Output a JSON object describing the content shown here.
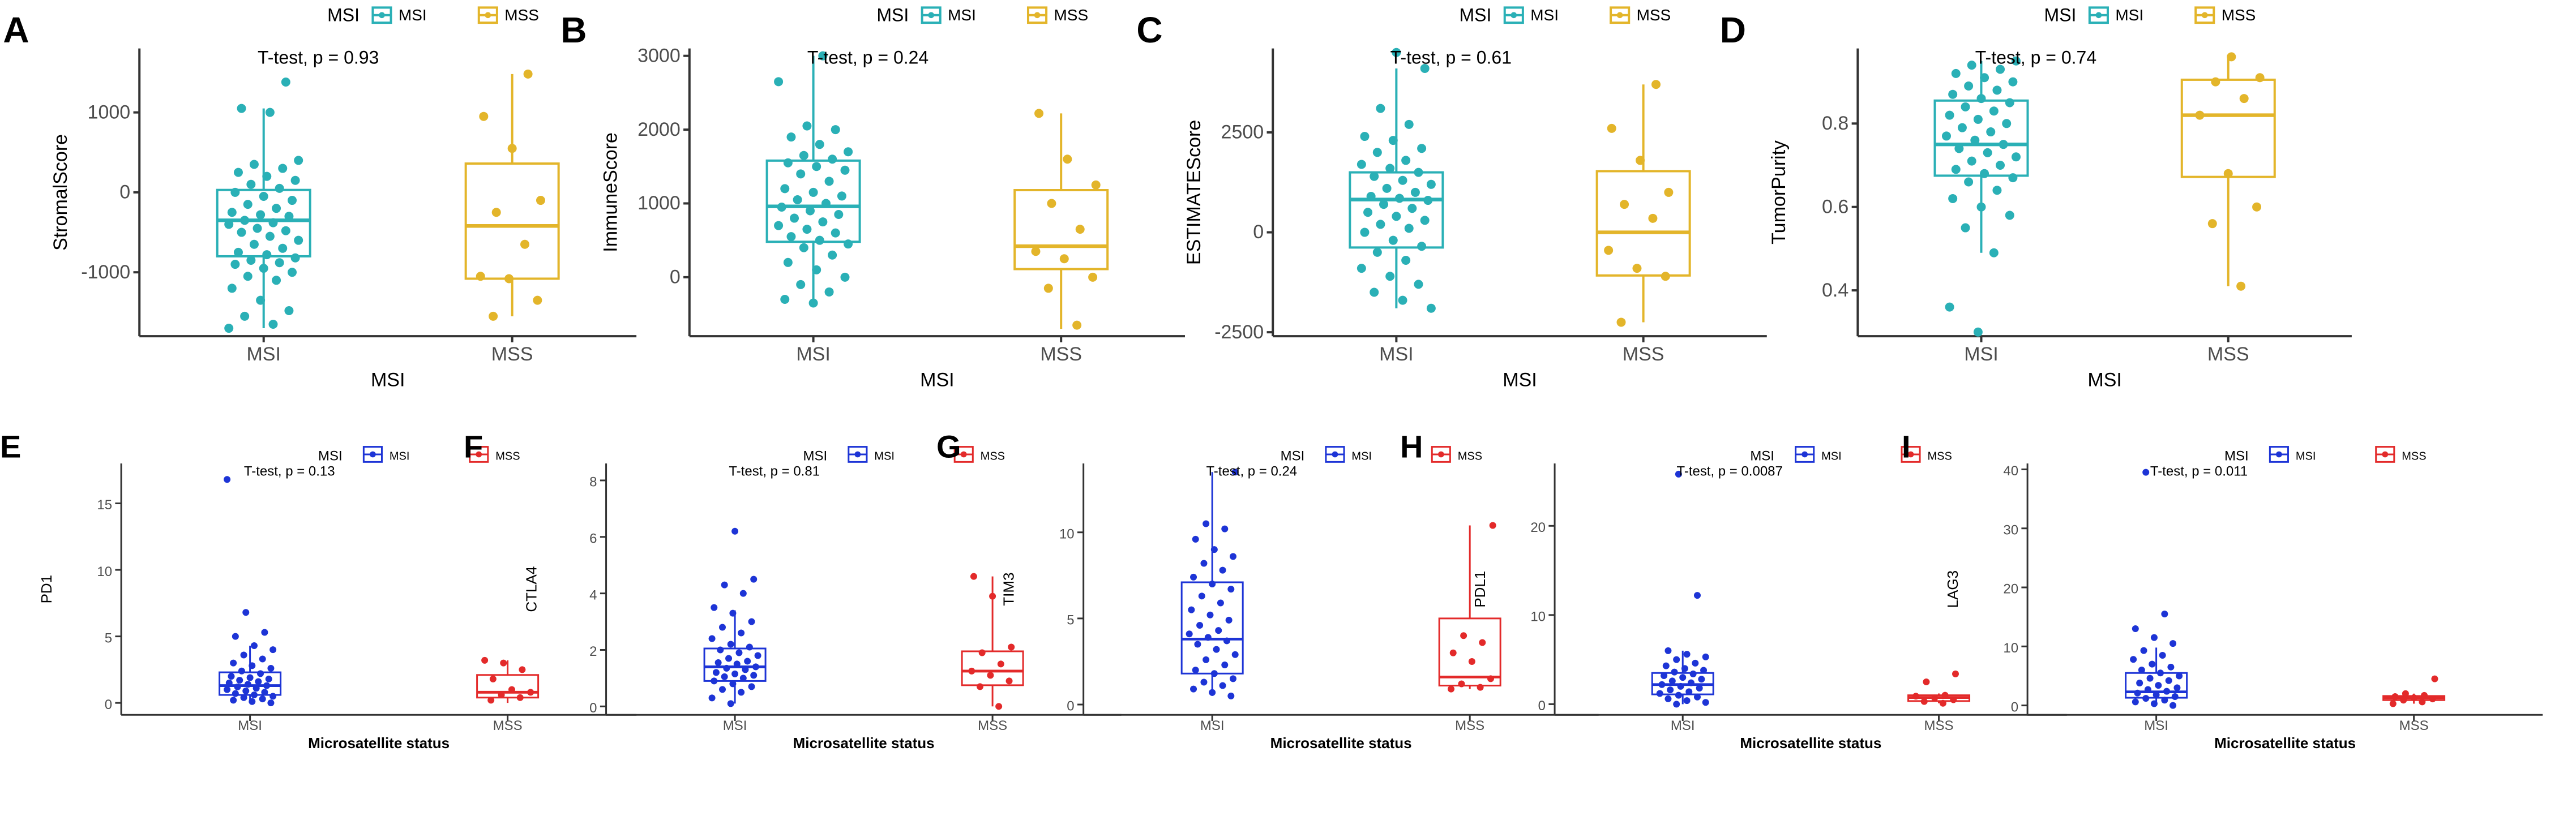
{
  "figure": {
    "panel_letters": [
      "A",
      "B",
      "C",
      "D",
      "E",
      "F",
      "G",
      "H",
      "I"
    ]
  },
  "colors": {
    "msi_top": "#2ab0b6",
    "mss_top": "#e3b52a",
    "msi_bottom": "#1d34d6",
    "mss_bottom": "#e32a2a",
    "axis": "#333333",
    "text": "#000000"
  },
  "chart_data": [
    {
      "panel": "A",
      "type": "boxplot",
      "ylabel": "StromalScore",
      "xlabel": "MSI",
      "categories": [
        "MSI",
        "MSS"
      ],
      "legend": {
        "title": "MSI",
        "entries": [
          "MSI",
          "MSS"
        ]
      },
      "annotation": "T-test, p = 0.93",
      "ylim": [
        -1800,
        1800
      ],
      "yticks": [
        -1000,
        0,
        1000
      ],
      "ytick_labels": [
        "-1000",
        "0",
        "1000"
      ],
      "boxes": [
        {
          "category": "MSI",
          "q1": -800,
          "median": -350,
          "q3": 30,
          "whisker_low": -1700,
          "whisker_high": 1050
        },
        {
          "category": "MSS",
          "q1": -1080,
          "median": -420,
          "q3": 360,
          "whisker_low": -1550,
          "whisker_high": 1480
        }
      ],
      "points": [
        [
          -1700,
          -1650,
          -1550,
          -1480,
          -1350,
          -1200,
          -1100,
          -1050,
          -1000,
          -950,
          -900,
          -880,
          -850,
          -820,
          -780,
          -750,
          -700,
          -650,
          -600,
          -550,
          -500,
          -480,
          -450,
          -400,
          -380,
          -350,
          -300,
          -280,
          -250,
          -200,
          -150,
          -100,
          -50,
          0,
          50,
          100,
          150,
          200,
          250,
          300,
          350,
          400,
          1000,
          1050,
          1380
        ],
        [
          -1550,
          -1350,
          -1080,
          -1050,
          -650,
          -250,
          -100,
          550,
          950,
          1480
        ]
      ]
    },
    {
      "panel": "B",
      "type": "boxplot",
      "ylabel": "ImmuneScore",
      "xlabel": "MSI",
      "categories": [
        "MSI",
        "MSS"
      ],
      "legend": {
        "title": "MSI",
        "entries": [
          "MSI",
          "MSS"
        ]
      },
      "annotation": "T-test, p = 0.24",
      "ylim": [
        -800,
        3100
      ],
      "yticks": [
        0,
        1000,
        2000,
        3000
      ],
      "ytick_labels": [
        "0",
        "1000",
        "2000",
        "3000"
      ],
      "boxes": [
        {
          "category": "MSI",
          "q1": 480,
          "median": 960,
          "q3": 1580,
          "whisker_low": -300,
          "whisker_high": 3000
        },
        {
          "category": "MSS",
          "q1": 110,
          "median": 420,
          "q3": 1180,
          "whisker_low": -700,
          "whisker_high": 2220
        }
      ],
      "points": [
        [
          -350,
          -300,
          -200,
          -100,
          0,
          100,
          200,
          300,
          400,
          450,
          500,
          550,
          600,
          650,
          700,
          750,
          800,
          850,
          900,
          950,
          1000,
          1050,
          1100,
          1150,
          1200,
          1300,
          1400,
          1450,
          1500,
          1550,
          1600,
          1650,
          1700,
          1800,
          1900,
          2000,
          2050,
          2650,
          3000
        ],
        [
          -650,
          -150,
          0,
          250,
          350,
          650,
          1000,
          1250,
          1600,
          2220
        ]
      ]
    },
    {
      "panel": "C",
      "type": "boxplot",
      "ylabel": "ESTIMATEScore",
      "xlabel": "MSI",
      "categories": [
        "MSI",
        "MSS"
      ],
      "legend": {
        "title": "MSI",
        "entries": [
          "MSI",
          "MSS"
        ]
      },
      "annotation": "T-test, p = 0.61",
      "ylim": [
        -2600,
        4600
      ],
      "yticks": [
        -2500,
        0,
        2500
      ],
      "ytick_labels": [
        "-2500",
        "0",
        "2500"
      ],
      "boxes": [
        {
          "category": "MSI",
          "q1": -380,
          "median": 820,
          "q3": 1500,
          "whisker_low": -1900,
          "whisker_high": 4100
        },
        {
          "category": "MSS",
          "q1": -1080,
          "median": 0,
          "q3": 1530,
          "whisker_low": -2250,
          "whisker_high": 3700
        }
      ],
      "points": [
        [
          -1900,
          -1700,
          -1500,
          -1300,
          -1100,
          -900,
          -700,
          -500,
          -350,
          -200,
          0,
          100,
          200,
          300,
          400,
          500,
          600,
          700,
          800,
          850,
          900,
          1000,
          1100,
          1200,
          1300,
          1400,
          1500,
          1600,
          1700,
          1800,
          2000,
          2100,
          2300,
          2400,
          2700,
          3100,
          4100,
          4500
        ],
        [
          -2250,
          -1100,
          -900,
          -450,
          350,
          700,
          1000,
          1800,
          2600,
          3700
        ]
      ]
    },
    {
      "panel": "D",
      "type": "boxplot",
      "ylabel": "TumorPurity",
      "xlabel": "MSI",
      "categories": [
        "MSI",
        "MSS"
      ],
      "legend": {
        "title": "MSI",
        "entries": [
          "MSI",
          "MSS"
        ]
      },
      "annotation": "T-test, p = 0.74",
      "ylim": [
        0.29,
        0.98
      ],
      "yticks": [
        0.4,
        0.6,
        0.8
      ],
      "ytick_labels": [
        "0.4",
        "0.6",
        "0.8"
      ],
      "boxes": [
        {
          "category": "MSI",
          "q1": 0.675,
          "median": 0.75,
          "q3": 0.855,
          "whisker_low": 0.49,
          "whisker_high": 0.95
        },
        {
          "category": "MSS",
          "q1": 0.672,
          "median": 0.82,
          "q3": 0.905,
          "whisker_low": 0.41,
          "whisker_high": 0.965
        }
      ],
      "points": [
        [
          0.3,
          0.36,
          0.49,
          0.55,
          0.58,
          0.6,
          0.62,
          0.64,
          0.66,
          0.67,
          0.68,
          0.69,
          0.7,
          0.71,
          0.72,
          0.73,
          0.74,
          0.75,
          0.76,
          0.77,
          0.78,
          0.79,
          0.8,
          0.81,
          0.82,
          0.83,
          0.84,
          0.85,
          0.86,
          0.87,
          0.88,
          0.89,
          0.9,
          0.91,
          0.92,
          0.93,
          0.94,
          0.95
        ],
        [
          0.41,
          0.56,
          0.6,
          0.68,
          0.82,
          0.86,
          0.9,
          0.91,
          0.96
        ]
      ]
    },
    {
      "panel": "E",
      "type": "boxplot",
      "ylabel": "PD1",
      "xlabel": "Microsatellite status",
      "categories": [
        "MSI",
        "MSS"
      ],
      "legend": {
        "title": "MSI",
        "entries": [
          "MSI",
          "MSS"
        ]
      },
      "annotation": "T-test, p = 0.13",
      "ylim": [
        -0.9,
        18
      ],
      "yticks": [
        0,
        5,
        10,
        15
      ],
      "ytick_labels": [
        "0",
        "5",
        "10",
        "15"
      ],
      "boxes": [
        {
          "category": "MSI",
          "q1": 0.6,
          "median": 1.3,
          "q3": 2.3,
          "whisker_low": 0,
          "whisker_high": 4.3
        },
        {
          "category": "MSS",
          "q1": 0.4,
          "median": 0.8,
          "q3": 2.1,
          "whisker_low": 0,
          "whisker_high": 3.2
        }
      ],
      "points": [
        [
          0,
          0.1,
          0.2,
          0.3,
          0.4,
          0.5,
          0.6,
          0.7,
          0.8,
          0.9,
          1.0,
          1.1,
          1.2,
          1.3,
          1.4,
          1.5,
          1.6,
          1.7,
          1.8,
          1.9,
          2.0,
          2.2,
          2.4,
          2.6,
          2.8,
          3.0,
          3.3,
          3.6,
          4.0,
          4.3,
          5.0,
          5.3,
          6.8,
          16.8
        ],
        [
          0.2,
          0.4,
          0.6,
          0.8,
          1.0,
          1.8,
          2.5,
          3.0,
          3.2
        ]
      ]
    },
    {
      "panel": "F",
      "type": "boxplot",
      "ylabel": "CTLA4",
      "xlabel": "Microsatellite status",
      "categories": [
        "MSI",
        "MSS"
      ],
      "legend": {
        "title": "MSI",
        "entries": [
          "MSI",
          "MSS"
        ]
      },
      "annotation": "T-test, p = 0.81",
      "ylim": [
        -0.3,
        8.6
      ],
      "yticks": [
        0,
        2,
        4,
        6,
        8
      ],
      "ytick_labels": [
        "0",
        "2",
        "4",
        "6",
        "8"
      ],
      "boxes": [
        {
          "category": "MSI",
          "q1": 0.9,
          "median": 1.4,
          "q3": 2.05,
          "whisker_low": 0.1,
          "whisker_high": 3.4
        },
        {
          "category": "MSS",
          "q1": 0.75,
          "median": 1.25,
          "q3": 1.95,
          "whisker_low": 0,
          "whisker_high": 4.6
        }
      ],
      "points": [
        [
          0.1,
          0.3,
          0.5,
          0.6,
          0.7,
          0.8,
          0.9,
          1.0,
          1.05,
          1.1,
          1.15,
          1.2,
          1.3,
          1.35,
          1.4,
          1.5,
          1.55,
          1.6,
          1.7,
          1.8,
          1.9,
          2.0,
          2.1,
          2.2,
          2.4,
          2.6,
          2.8,
          3.0,
          3.3,
          3.5,
          4.0,
          4.3,
          4.5,
          6.2
        ],
        [
          0,
          0.7,
          0.9,
          1.1,
          1.25,
          1.5,
          1.9,
          2.1,
          3.9,
          4.6
        ]
      ]
    },
    {
      "panel": "G",
      "type": "boxplot",
      "ylabel": "TIM3",
      "xlabel": "Microsatellite status",
      "categories": [
        "MSI",
        "MSS"
      ],
      "legend": {
        "title": "MSI",
        "entries": [
          "MSI",
          "MSS"
        ]
      },
      "annotation": "T-test, p = 0.24",
      "ylim": [
        -0.6,
        14
      ],
      "yticks": [
        0,
        5,
        10
      ],
      "ytick_labels": [
        "0",
        "5",
        "10"
      ],
      "boxes": [
        {
          "category": "MSI",
          "q1": 1.8,
          "median": 3.8,
          "q3": 7.1,
          "whisker_low": 0.5,
          "whisker_high": 13.5
        },
        {
          "category": "MSS",
          "q1": 1.1,
          "median": 1.6,
          "q3": 5.0,
          "whisker_low": 0.9,
          "whisker_high": 10.4
        }
      ],
      "points": [
        [
          0.5,
          0.7,
          0.9,
          1.1,
          1.3,
          1.5,
          1.8,
          2.0,
          2.3,
          2.6,
          2.9,
          3.2,
          3.5,
          3.7,
          3.9,
          4.1,
          4.3,
          4.6,
          4.9,
          5.2,
          5.5,
          5.9,
          6.3,
          6.7,
          7.0,
          7.4,
          7.8,
          8.2,
          8.6,
          9.0,
          9.6,
          10.2,
          10.5,
          13.5
        ],
        [
          0.9,
          1.0,
          1.2,
          1.5,
          2.5,
          3.0,
          3.6,
          4.0,
          10.4
        ]
      ]
    },
    {
      "panel": "H",
      "type": "boxplot",
      "ylabel": "PDL1",
      "xlabel": "Microsatellite status",
      "categories": [
        "MSI",
        "MSS"
      ],
      "legend": {
        "title": "MSI",
        "entries": [
          "MSI",
          "MSS"
        ]
      },
      "annotation": "T-test, p = 0.0087",
      "ylim": [
        -1.2,
        27
      ],
      "yticks": [
        0,
        10,
        20
      ],
      "ytick_labels": [
        "0",
        "10",
        "20"
      ],
      "boxes": [
        {
          "category": "MSI",
          "q1": 1.1,
          "median": 2.2,
          "q3": 3.5,
          "whisker_low": 0,
          "whisker_high": 6.0
        },
        {
          "category": "MSS",
          "q1": 0.35,
          "median": 0.75,
          "q3": 1.0,
          "whisker_low": 0.1,
          "whisker_high": 1.2
        }
      ],
      "points": [
        [
          0,
          0.2,
          0.4,
          0.6,
          0.8,
          1.0,
          1.2,
          1.4,
          1.6,
          1.8,
          2.0,
          2.2,
          2.4,
          2.6,
          2.8,
          3.0,
          3.2,
          3.4,
          3.6,
          3.8,
          4.0,
          4.3,
          4.6,
          5.0,
          5.3,
          5.6,
          6.0,
          12.2,
          25.8
        ],
        [
          0.1,
          0.3,
          0.5,
          0.7,
          0.9,
          1.0,
          2.5,
          3.4
        ]
      ]
    },
    {
      "panel": "I",
      "type": "boxplot",
      "ylabel": "LAG3",
      "xlabel": "Microsatellite status",
      "categories": [
        "MSI",
        "MSS"
      ],
      "legend": {
        "title": "MSI",
        "entries": [
          "MSI",
          "MSS"
        ]
      },
      "annotation": "T-test, p = 0.011",
      "ylim": [
        -1.6,
        41
      ],
      "yticks": [
        0,
        10,
        20,
        30,
        40
      ],
      "ytick_labels": [
        "0",
        "10",
        "20",
        "30",
        "40"
      ],
      "boxes": [
        {
          "category": "MSI",
          "q1": 1.3,
          "median": 2.3,
          "q3": 5.5,
          "whisker_low": 0,
          "whisker_high": 9.8
        },
        {
          "category": "MSS",
          "q1": 0.9,
          "median": 1.3,
          "q3": 1.6,
          "whisker_low": 0.3,
          "whisker_high": 2.0
        }
      ],
      "points": [
        [
          0,
          0.3,
          0.6,
          0.9,
          1.2,
          1.5,
          1.8,
          2.1,
          2.4,
          2.7,
          3.0,
          3.4,
          3.8,
          4.2,
          4.6,
          5.0,
          5.5,
          6.0,
          6.5,
          7.0,
          7.8,
          8.5,
          9.3,
          10.5,
          11.5,
          13.0,
          15.5,
          39.5
        ],
        [
          0.3,
          0.6,
          0.9,
          1.1,
          1.3,
          1.5,
          1.7,
          2.0,
          4.5
        ]
      ]
    }
  ]
}
